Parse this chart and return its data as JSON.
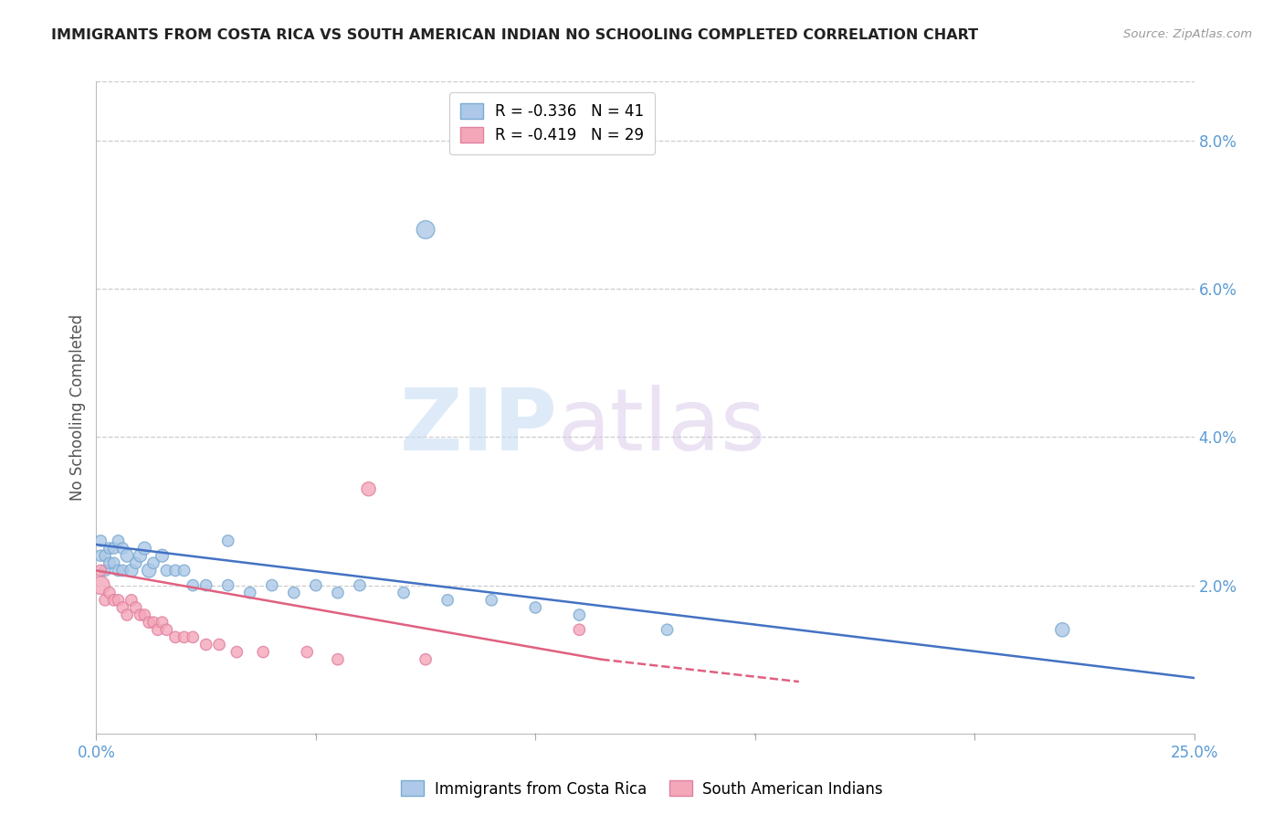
{
  "title": "IMMIGRANTS FROM COSTA RICA VS SOUTH AMERICAN INDIAN NO SCHOOLING COMPLETED CORRELATION CHART",
  "source": "Source: ZipAtlas.com",
  "ylabel": "No Schooling Completed",
  "xlim": [
    0.0,
    0.25
  ],
  "ylim": [
    0.0,
    0.088
  ],
  "xticks": [
    0.0,
    0.05,
    0.1,
    0.15,
    0.2,
    0.25
  ],
  "yticks_right": [
    0.02,
    0.04,
    0.06,
    0.08
  ],
  "ytick_labels_right": [
    "2.0%",
    "4.0%",
    "6.0%",
    "8.0%"
  ],
  "xtick_labels": [
    "0.0%",
    "",
    "",
    "",
    "",
    "25.0%"
  ],
  "background_color": "#ffffff",
  "grid_color": "#cccccc",
  "axis_color": "#aaaaaa",
  "tick_color_right": "#5b9bd5",
  "watermark_zip": "ZIP",
  "watermark_atlas": "atlas",
  "legend_entries": [
    {
      "label": "Immigrants from Costa Rica",
      "R": "-0.336",
      "N": "41",
      "color": "#adc8e8",
      "edge": "#7aaad0"
    },
    {
      "label": "South American Indians",
      "R": "-0.419",
      "N": "29",
      "color": "#f4a7b9",
      "edge": "#e080a0"
    }
  ],
  "series_blue": {
    "x": [
      0.001,
      0.001,
      0.002,
      0.002,
      0.003,
      0.003,
      0.004,
      0.004,
      0.005,
      0.005,
      0.006,
      0.006,
      0.007,
      0.008,
      0.009,
      0.01,
      0.011,
      0.012,
      0.013,
      0.015,
      0.016,
      0.018,
      0.02,
      0.022,
      0.025,
      0.03,
      0.035,
      0.04,
      0.045,
      0.05,
      0.055,
      0.06,
      0.07,
      0.075,
      0.08,
      0.09,
      0.1,
      0.11,
      0.13,
      0.22,
      0.03
    ],
    "y": [
      0.024,
      0.026,
      0.024,
      0.022,
      0.023,
      0.025,
      0.025,
      0.023,
      0.026,
      0.022,
      0.025,
      0.022,
      0.024,
      0.022,
      0.023,
      0.024,
      0.025,
      0.022,
      0.023,
      0.024,
      0.022,
      0.022,
      0.022,
      0.02,
      0.02,
      0.02,
      0.019,
      0.02,
      0.019,
      0.02,
      0.019,
      0.02,
      0.019,
      0.068,
      0.018,
      0.018,
      0.017,
      0.016,
      0.014,
      0.014,
      0.026
    ],
    "sizes": [
      80,
      80,
      80,
      80,
      80,
      80,
      80,
      80,
      80,
      80,
      80,
      80,
      100,
      100,
      80,
      100,
      100,
      120,
      80,
      100,
      80,
      80,
      80,
      80,
      80,
      80,
      80,
      80,
      80,
      80,
      80,
      80,
      80,
      200,
      80,
      80,
      80,
      80,
      80,
      120,
      80
    ]
  },
  "series_pink": {
    "x": [
      0.001,
      0.001,
      0.002,
      0.003,
      0.004,
      0.005,
      0.006,
      0.007,
      0.008,
      0.009,
      0.01,
      0.011,
      0.012,
      0.013,
      0.014,
      0.015,
      0.016,
      0.018,
      0.02,
      0.022,
      0.025,
      0.028,
      0.032,
      0.038,
      0.048,
      0.055,
      0.062,
      0.075,
      0.11
    ],
    "y": [
      0.022,
      0.02,
      0.018,
      0.019,
      0.018,
      0.018,
      0.017,
      0.016,
      0.018,
      0.017,
      0.016,
      0.016,
      0.015,
      0.015,
      0.014,
      0.015,
      0.014,
      0.013,
      0.013,
      0.013,
      0.012,
      0.012,
      0.011,
      0.011,
      0.011,
      0.01,
      0.033,
      0.01,
      0.014
    ],
    "sizes": [
      80,
      200,
      80,
      80,
      80,
      80,
      80,
      80,
      80,
      80,
      80,
      80,
      80,
      80,
      80,
      80,
      80,
      80,
      80,
      80,
      80,
      80,
      80,
      80,
      80,
      80,
      120,
      80,
      80
    ]
  },
  "line_blue": {
    "x_start": 0.0,
    "x_end": 0.25,
    "y_start": 0.0255,
    "y_end": 0.0075,
    "color": "#4472c4",
    "lw": 1.8
  },
  "line_pink_solid": {
    "x_start": 0.0,
    "x_end": 0.115,
    "y_start": 0.022,
    "y_end": 0.01,
    "color": "#e06080",
    "lw": 1.8
  },
  "line_pink_dash": {
    "x_start": 0.115,
    "x_end": 0.16,
    "y_start": 0.01,
    "y_end": 0.007,
    "color": "#e06080",
    "lw": 1.8
  }
}
